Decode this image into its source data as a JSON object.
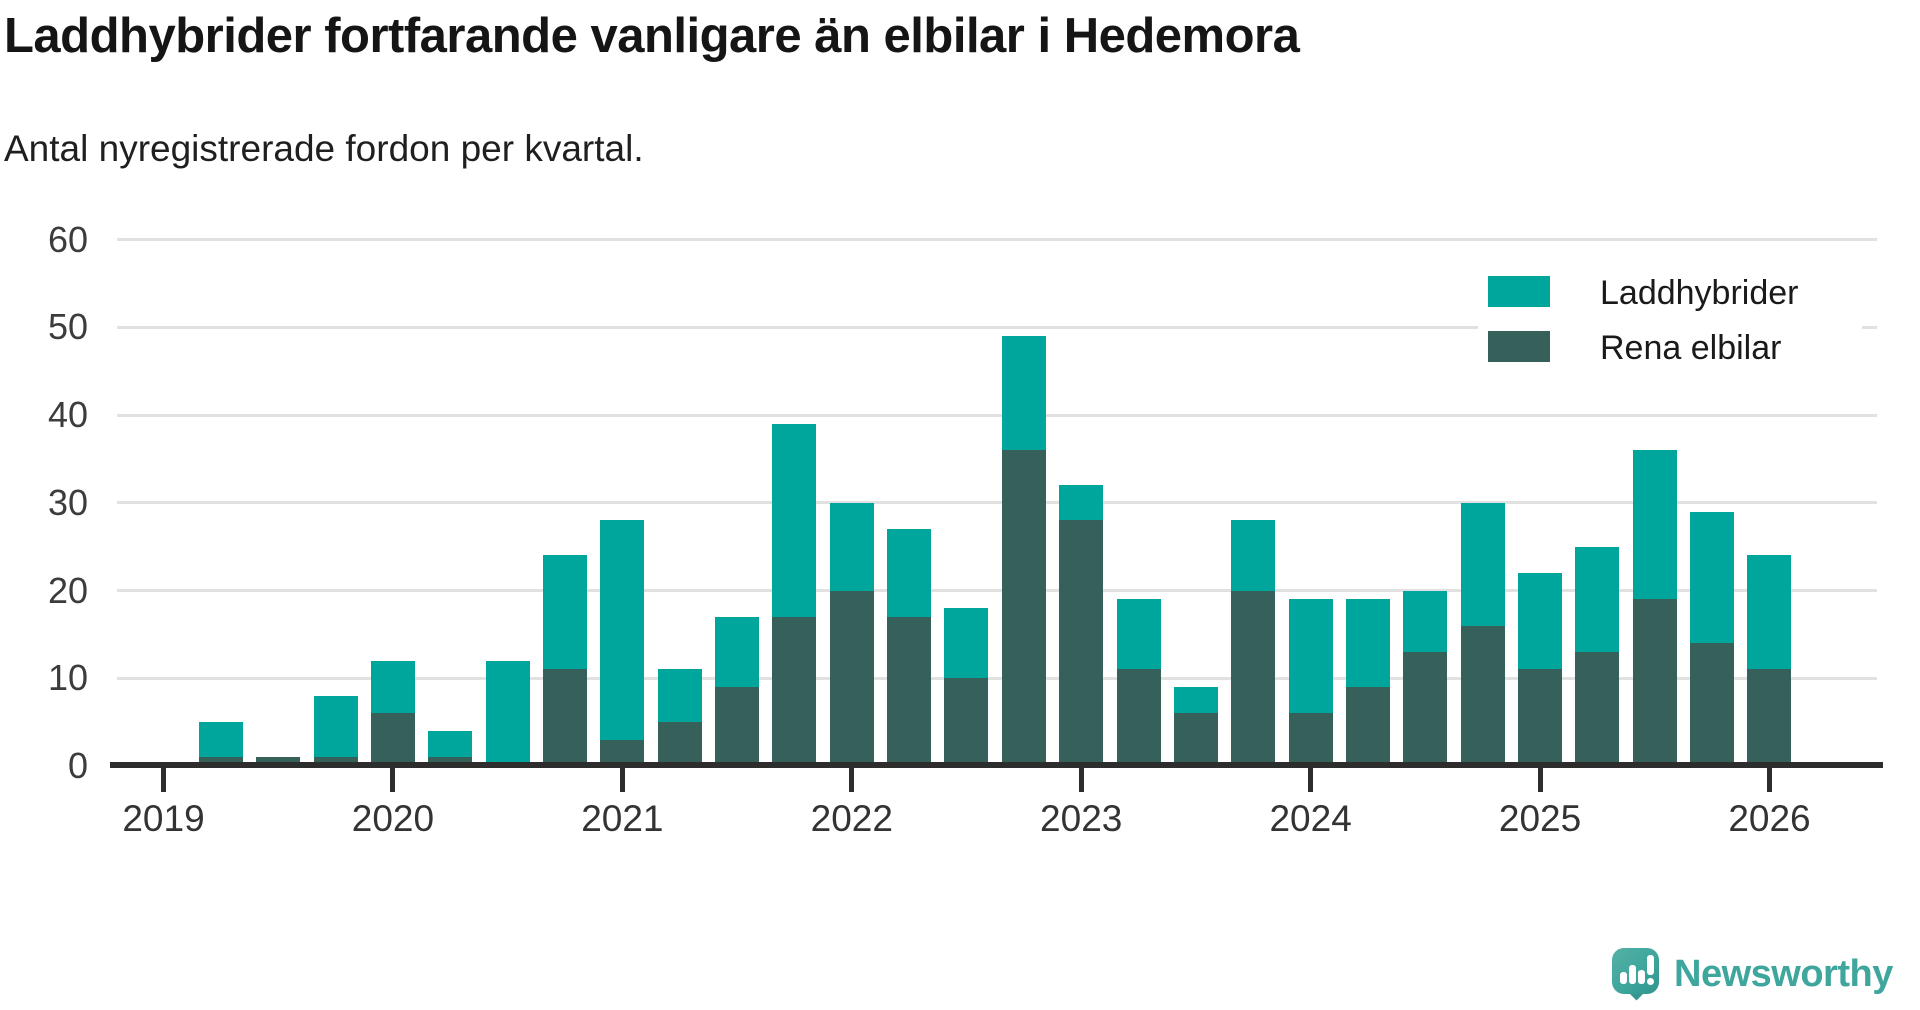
{
  "title": "Laddhybrider fortfarande vanligare än elbilar i Hedemora",
  "subtitle": "Antal nyregistrerade fordon per kvartal.",
  "legend": {
    "items": [
      {
        "label": "Laddhybrider",
        "color": "#00a69c"
      },
      {
        "label": "Rena elbilar",
        "color": "#36605a"
      }
    ]
  },
  "branding": {
    "logo_text": "Newsworthy",
    "logo_color": "#3ea69d"
  },
  "colors": {
    "laddhybrider": "#00a69c",
    "rena_elbilar": "#36605a",
    "gridline": "#e1e1e1",
    "axis": "#2d2d2d"
  },
  "chart_data": {
    "type": "bar",
    "stacked": true,
    "title": "Laddhybrider fortfarande vanligare än elbilar i Hedemora",
    "subtitle": "Antal nyregistrerade fordon per kvartal.",
    "xlabel": "",
    "ylabel": "",
    "ylim": [
      0,
      60
    ],
    "y_ticks": [
      0,
      10,
      20,
      30,
      40,
      50,
      60
    ],
    "grid": "horizontal",
    "legend_position": "top-right",
    "x": [
      "2019 Q1",
      "2019 Q2",
      "2019 Q3",
      "2019 Q4",
      "2020 Q1",
      "2020 Q2",
      "2020 Q3",
      "2020 Q4",
      "2021 Q1",
      "2021 Q2",
      "2021 Q3",
      "2021 Q4",
      "2022 Q1",
      "2022 Q2",
      "2022 Q3",
      "2022 Q4",
      "2023 Q1",
      "2023 Q2",
      "2023 Q3",
      "2023 Q4",
      "2024 Q1",
      "2024 Q2",
      "2024 Q3",
      "2024 Q4",
      "2025 Q1",
      "2025 Q2",
      "2025 Q3",
      "2025 Q4",
      "2026 Q1"
    ],
    "x_year_ticks": [
      {
        "label": "2019",
        "index": 0
      },
      {
        "label": "2020",
        "index": 4
      },
      {
        "label": "2021",
        "index": 8
      },
      {
        "label": "2022",
        "index": 12
      },
      {
        "label": "2023",
        "index": 16
      },
      {
        "label": "2024",
        "index": 20
      },
      {
        "label": "2025",
        "index": 24
      },
      {
        "label": "2026",
        "index": 28
      }
    ],
    "series": [
      {
        "name": "Rena elbilar",
        "color": "#36605a",
        "values": [
          0,
          1,
          1,
          1,
          6,
          1,
          0,
          11,
          3,
          5,
          9,
          17,
          20,
          17,
          10,
          36,
          28,
          11,
          6,
          20,
          6,
          9,
          13,
          16,
          11,
          13,
          19,
          14,
          11
        ]
      },
      {
        "name": "Laddhybrider",
        "color": "#00a69c",
        "values": [
          0,
          4,
          0,
          7,
          6,
          3,
          12,
          13,
          25,
          6,
          8,
          22,
          10,
          10,
          8,
          13,
          4,
          8,
          3,
          8,
          13,
          10,
          7,
          14,
          11,
          12,
          17,
          15,
          13
        ]
      }
    ],
    "totals": [
      0,
      5,
      1,
      8,
      12,
      4,
      12,
      24,
      28,
      11,
      17,
      39,
      30,
      27,
      18,
      49,
      32,
      19,
      9,
      28,
      19,
      19,
      20,
      30,
      22,
      25,
      36,
      29,
      24
    ]
  }
}
